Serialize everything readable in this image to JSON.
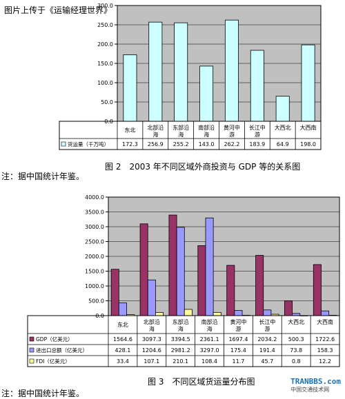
{
  "header": {
    "upload_note": "图片上传于《运输经理世界》"
  },
  "figure1": {
    "caption": "图 2　2003 年不同区域外商投资与 GDP 等的关系图",
    "note": "注：据中国统计年鉴。"
  },
  "figure2": {
    "caption": "图 3　不同区域货运量分布图",
    "note": "注：据中国统计年鉴。"
  },
  "watermark": {
    "brand": "TRANBBS.com",
    "sub": "中国交通技术网"
  },
  "colors": {
    "plot_bg": "#c0c0c0",
    "cyan_bar": "#ccffff",
    "gdp_bar": "#993366",
    "trade_bar": "#9999ff",
    "fdi_bar": "#ffff99"
  },
  "chart_data": [
    {
      "type": "bar",
      "categories": [
        "东北",
        "北部沿海",
        "东部沿海",
        "南部沿海",
        "黄河中游",
        "长江中游",
        "大西北",
        "大西南"
      ],
      "series": [
        {
          "name": "货运量（千万吨）",
          "values": [
            172.3,
            256.9,
            255.2,
            143.0,
            262.2,
            183.9,
            64.9,
            198.0
          ]
        }
      ],
      "value_labels": [
        [
          "172.3",
          "256.9",
          "255.2",
          "143.0",
          "262.2",
          "183.9",
          "64.9",
          "198.0"
        ]
      ],
      "yticks": [
        "0.0",
        "50.0",
        "100.0",
        "150.0",
        "200.0",
        "250.0",
        "300.0"
      ],
      "ylim": [
        0,
        300
      ]
    },
    {
      "type": "bar",
      "categories": [
        "东北",
        "北部沿海",
        "东部沿海",
        "南部沿海",
        "黄河中游",
        "长江中游",
        "大西北",
        "大西南"
      ],
      "series": [
        {
          "name": "GDP（亿美元）",
          "values": [
            1564.6,
            3097.3,
            3394.5,
            2361.1,
            1697.4,
            2034.2,
            500.3,
            1722.6
          ]
        },
        {
          "name": "进出口总额（亿美元）",
          "values": [
            428.1,
            1204.6,
            2981.2,
            3297.0,
            175.4,
            191.4,
            73.8,
            158.3
          ]
        },
        {
          "name": "FDI（亿美元）",
          "values": [
            33.4,
            107.1,
            210.1,
            108.4,
            11.7,
            45.7,
            0.8,
            12.2
          ]
        }
      ],
      "value_labels": [
        [
          "1564.6",
          "3097.3",
          "3394.5",
          "2361.1",
          "1697.4",
          "2034.2",
          "500.3",
          "1722.6"
        ],
        [
          "428.1",
          "1204.6",
          "2981.2",
          "3297.0",
          "175.4",
          "191.4",
          "73.8",
          "158.3"
        ],
        [
          "33.4",
          "107.1",
          "210.1",
          "108.4",
          "11.7",
          "45.7",
          "0.8",
          "12.2"
        ]
      ],
      "yticks": [
        "0.0",
        "500.0",
        "1000.0",
        "1500.0",
        "2000.0",
        "2500.0",
        "3000.0",
        "3500.0",
        "4000.0"
      ],
      "ylim": [
        0,
        4000
      ]
    }
  ]
}
